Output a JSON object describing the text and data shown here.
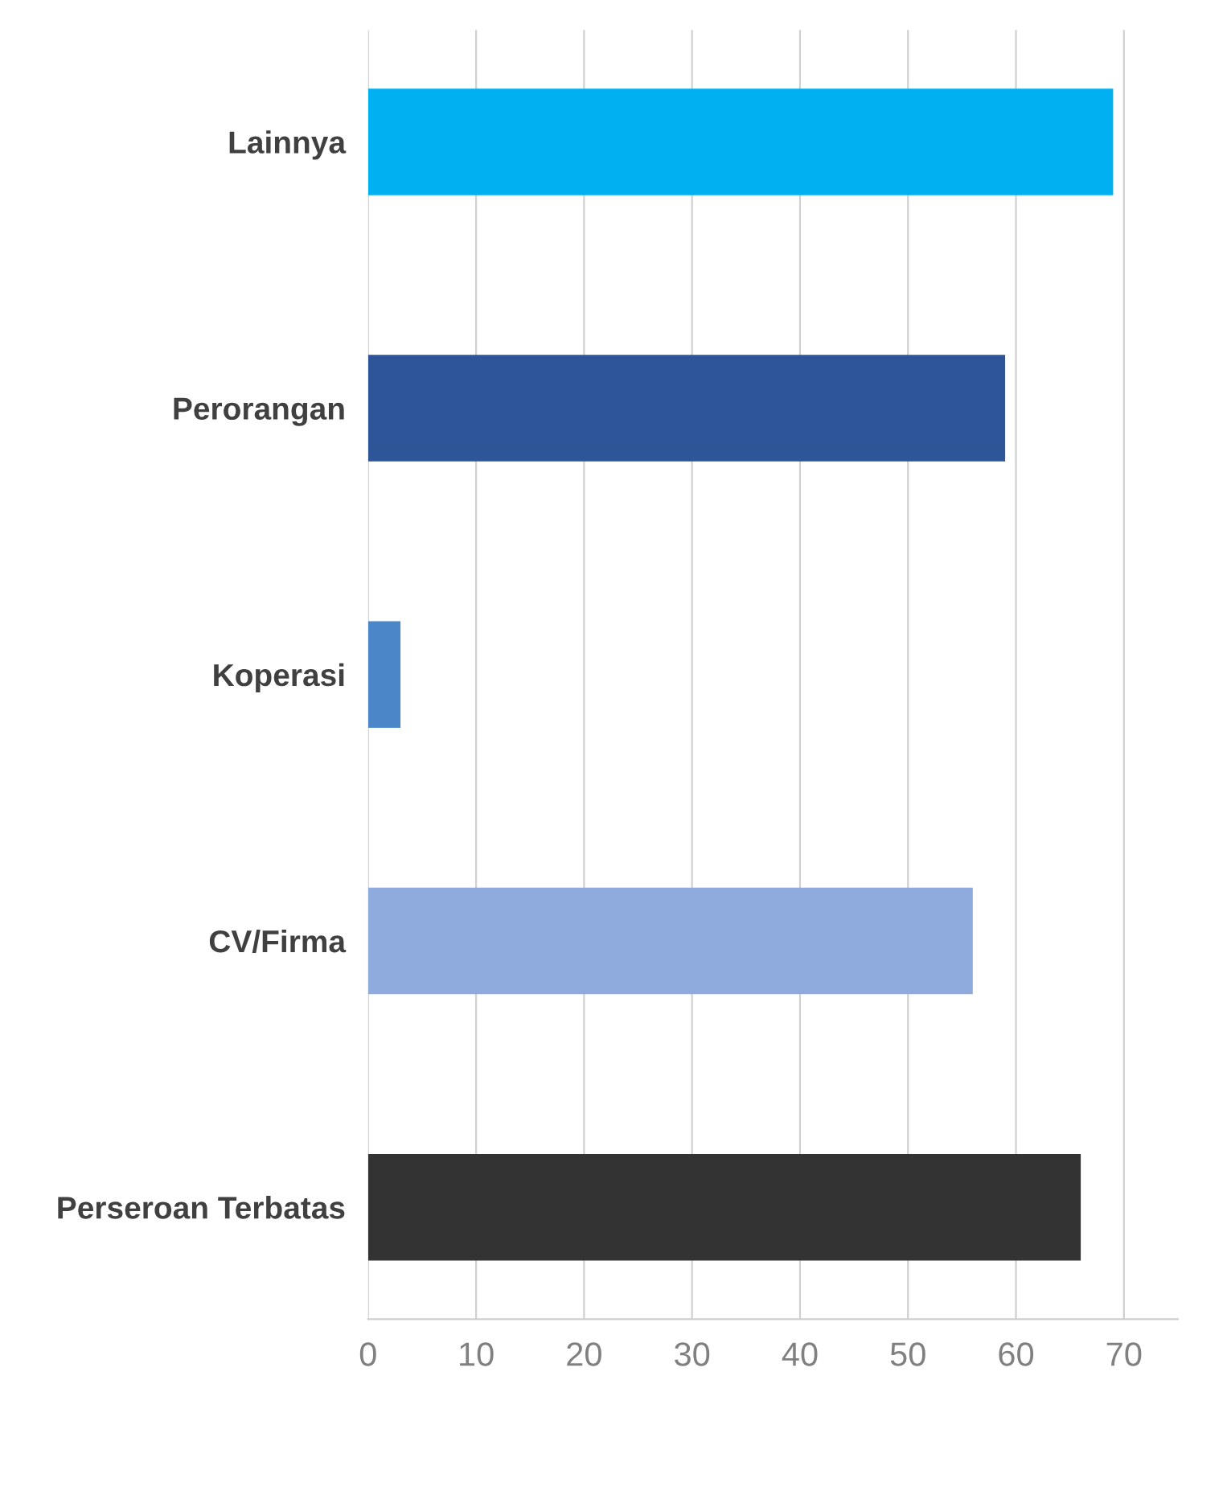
{
  "chart_data": {
    "type": "bar",
    "orientation": "horizontal",
    "categories": [
      "Lainnya",
      "Perorangan",
      "Koperasi",
      "CV/Firma",
      "Perseroan Terbatas"
    ],
    "values": [
      69,
      59,
      3,
      56,
      66
    ],
    "colors": [
      "#00b0f0",
      "#2e5597",
      "#4a86c8",
      "#8faadc",
      "#333333"
    ],
    "xlim": [
      0,
      75
    ],
    "xticks": [
      0,
      10,
      20,
      30,
      40,
      50,
      60,
      70
    ],
    "grid": "x"
  }
}
